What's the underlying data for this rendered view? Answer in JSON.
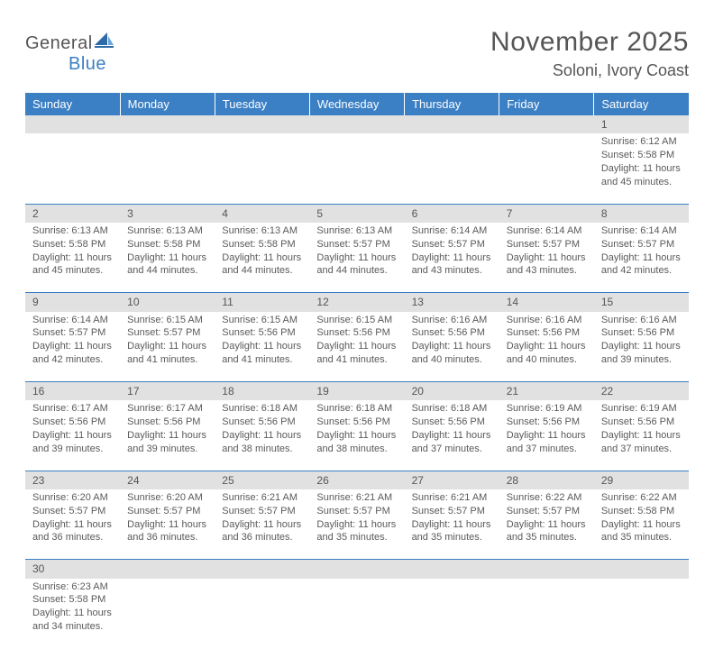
{
  "logo": {
    "general": "General",
    "blue": "Blue"
  },
  "title": "November 2025",
  "location": "Soloni, Ivory Coast",
  "colors": {
    "header_bg": "#3b7fc4",
    "daynum_bg": "#e1e1e1",
    "row_border": "#3b7fc4",
    "text": "#5a5a5a"
  },
  "days": [
    "Sunday",
    "Monday",
    "Tuesday",
    "Wednesday",
    "Thursday",
    "Friday",
    "Saturday"
  ],
  "weeks": [
    [
      null,
      null,
      null,
      null,
      null,
      null,
      {
        "n": "1",
        "sr": "Sunrise: 6:12 AM",
        "ss": "Sunset: 5:58 PM",
        "dl1": "Daylight: 11 hours",
        "dl2": "and 45 minutes."
      }
    ],
    [
      {
        "n": "2",
        "sr": "Sunrise: 6:13 AM",
        "ss": "Sunset: 5:58 PM",
        "dl1": "Daylight: 11 hours",
        "dl2": "and 45 minutes."
      },
      {
        "n": "3",
        "sr": "Sunrise: 6:13 AM",
        "ss": "Sunset: 5:58 PM",
        "dl1": "Daylight: 11 hours",
        "dl2": "and 44 minutes."
      },
      {
        "n": "4",
        "sr": "Sunrise: 6:13 AM",
        "ss": "Sunset: 5:58 PM",
        "dl1": "Daylight: 11 hours",
        "dl2": "and 44 minutes."
      },
      {
        "n": "5",
        "sr": "Sunrise: 6:13 AM",
        "ss": "Sunset: 5:57 PM",
        "dl1": "Daylight: 11 hours",
        "dl2": "and 44 minutes."
      },
      {
        "n": "6",
        "sr": "Sunrise: 6:14 AM",
        "ss": "Sunset: 5:57 PM",
        "dl1": "Daylight: 11 hours",
        "dl2": "and 43 minutes."
      },
      {
        "n": "7",
        "sr": "Sunrise: 6:14 AM",
        "ss": "Sunset: 5:57 PM",
        "dl1": "Daylight: 11 hours",
        "dl2": "and 43 minutes."
      },
      {
        "n": "8",
        "sr": "Sunrise: 6:14 AM",
        "ss": "Sunset: 5:57 PM",
        "dl1": "Daylight: 11 hours",
        "dl2": "and 42 minutes."
      }
    ],
    [
      {
        "n": "9",
        "sr": "Sunrise: 6:14 AM",
        "ss": "Sunset: 5:57 PM",
        "dl1": "Daylight: 11 hours",
        "dl2": "and 42 minutes."
      },
      {
        "n": "10",
        "sr": "Sunrise: 6:15 AM",
        "ss": "Sunset: 5:57 PM",
        "dl1": "Daylight: 11 hours",
        "dl2": "and 41 minutes."
      },
      {
        "n": "11",
        "sr": "Sunrise: 6:15 AM",
        "ss": "Sunset: 5:56 PM",
        "dl1": "Daylight: 11 hours",
        "dl2": "and 41 minutes."
      },
      {
        "n": "12",
        "sr": "Sunrise: 6:15 AM",
        "ss": "Sunset: 5:56 PM",
        "dl1": "Daylight: 11 hours",
        "dl2": "and 41 minutes."
      },
      {
        "n": "13",
        "sr": "Sunrise: 6:16 AM",
        "ss": "Sunset: 5:56 PM",
        "dl1": "Daylight: 11 hours",
        "dl2": "and 40 minutes."
      },
      {
        "n": "14",
        "sr": "Sunrise: 6:16 AM",
        "ss": "Sunset: 5:56 PM",
        "dl1": "Daylight: 11 hours",
        "dl2": "and 40 minutes."
      },
      {
        "n": "15",
        "sr": "Sunrise: 6:16 AM",
        "ss": "Sunset: 5:56 PM",
        "dl1": "Daylight: 11 hours",
        "dl2": "and 39 minutes."
      }
    ],
    [
      {
        "n": "16",
        "sr": "Sunrise: 6:17 AM",
        "ss": "Sunset: 5:56 PM",
        "dl1": "Daylight: 11 hours",
        "dl2": "and 39 minutes."
      },
      {
        "n": "17",
        "sr": "Sunrise: 6:17 AM",
        "ss": "Sunset: 5:56 PM",
        "dl1": "Daylight: 11 hours",
        "dl2": "and 39 minutes."
      },
      {
        "n": "18",
        "sr": "Sunrise: 6:18 AM",
        "ss": "Sunset: 5:56 PM",
        "dl1": "Daylight: 11 hours",
        "dl2": "and 38 minutes."
      },
      {
        "n": "19",
        "sr": "Sunrise: 6:18 AM",
        "ss": "Sunset: 5:56 PM",
        "dl1": "Daylight: 11 hours",
        "dl2": "and 38 minutes."
      },
      {
        "n": "20",
        "sr": "Sunrise: 6:18 AM",
        "ss": "Sunset: 5:56 PM",
        "dl1": "Daylight: 11 hours",
        "dl2": "and 37 minutes."
      },
      {
        "n": "21",
        "sr": "Sunrise: 6:19 AM",
        "ss": "Sunset: 5:56 PM",
        "dl1": "Daylight: 11 hours",
        "dl2": "and 37 minutes."
      },
      {
        "n": "22",
        "sr": "Sunrise: 6:19 AM",
        "ss": "Sunset: 5:56 PM",
        "dl1": "Daylight: 11 hours",
        "dl2": "and 37 minutes."
      }
    ],
    [
      {
        "n": "23",
        "sr": "Sunrise: 6:20 AM",
        "ss": "Sunset: 5:57 PM",
        "dl1": "Daylight: 11 hours",
        "dl2": "and 36 minutes."
      },
      {
        "n": "24",
        "sr": "Sunrise: 6:20 AM",
        "ss": "Sunset: 5:57 PM",
        "dl1": "Daylight: 11 hours",
        "dl2": "and 36 minutes."
      },
      {
        "n": "25",
        "sr": "Sunrise: 6:21 AM",
        "ss": "Sunset: 5:57 PM",
        "dl1": "Daylight: 11 hours",
        "dl2": "and 36 minutes."
      },
      {
        "n": "26",
        "sr": "Sunrise: 6:21 AM",
        "ss": "Sunset: 5:57 PM",
        "dl1": "Daylight: 11 hours",
        "dl2": "and 35 minutes."
      },
      {
        "n": "27",
        "sr": "Sunrise: 6:21 AM",
        "ss": "Sunset: 5:57 PM",
        "dl1": "Daylight: 11 hours",
        "dl2": "and 35 minutes."
      },
      {
        "n": "28",
        "sr": "Sunrise: 6:22 AM",
        "ss": "Sunset: 5:57 PM",
        "dl1": "Daylight: 11 hours",
        "dl2": "and 35 minutes."
      },
      {
        "n": "29",
        "sr": "Sunrise: 6:22 AM",
        "ss": "Sunset: 5:58 PM",
        "dl1": "Daylight: 11 hours",
        "dl2": "and 35 minutes."
      }
    ],
    [
      {
        "n": "30",
        "sr": "Sunrise: 6:23 AM",
        "ss": "Sunset: 5:58 PM",
        "dl1": "Daylight: 11 hours",
        "dl2": "and 34 minutes."
      },
      null,
      null,
      null,
      null,
      null,
      null
    ]
  ]
}
